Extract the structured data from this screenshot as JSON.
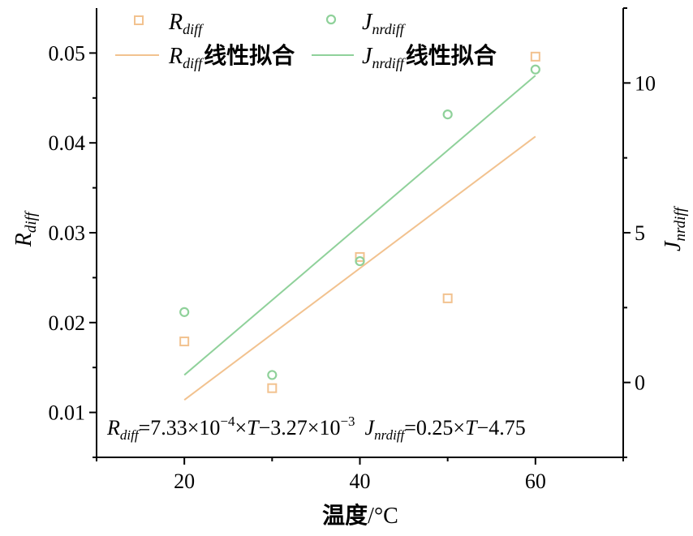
{
  "chart_data": {
    "type": "scatter",
    "title": "",
    "x": [
      20,
      30,
      40,
      50,
      60
    ],
    "xlabel_cn": "温度",
    "xlabel_unit": "/°C",
    "xlim": [
      10,
      70
    ],
    "x_ticks": [
      "20",
      "40",
      "60"
    ],
    "ylabel_left": {
      "main": "R",
      "sub": "diff"
    },
    "ylim_left": [
      0.005,
      0.055
    ],
    "y_ticks_left": [
      "0.01",
      "0.02",
      "0.03",
      "0.04",
      "0.05"
    ],
    "ylabel_right": {
      "main": "J",
      "sub": "nrdiff"
    },
    "ylim_right": [
      -2.5,
      12.5
    ],
    "y_ticks_right": [
      "0",
      "5",
      "10"
    ],
    "series": [
      {
        "key": "rdiff",
        "axis": "left",
        "marker": "square",
        "color": "#f2c28f",
        "values": [
          0.0179,
          0.0127,
          0.0273,
          0.0227,
          0.0496
        ],
        "fit": {
          "slope": 0.000733,
          "intercept": -0.00327
        }
      },
      {
        "key": "jnrdiff",
        "axis": "right",
        "marker": "circle",
        "color": "#8fd19a",
        "values": [
          2.35,
          0.25,
          4.05,
          8.95,
          10.45
        ],
        "fit": {
          "slope": 0.25,
          "intercept": -4.75
        }
      }
    ],
    "legend": {
      "position": "top",
      "fit_suffix": "线性拟合",
      "r_main": "R",
      "r_sub": "diff",
      "j_main": "J",
      "j_sub": "nrdiff"
    },
    "annotation": {
      "r_eq_main": "R",
      "r_eq_sub": "diff",
      "r_eq_a": "=7.33×10",
      "r_eq_exp": "−4",
      "r_eq_b": "×",
      "r_eq_t": "T",
      "r_eq_c": "−3.27×10",
      "r_eq_exp2": "−3",
      "j_eq_main": "J",
      "j_eq_sub": "nrdiff",
      "j_eq_a": "=0.25×",
      "j_eq_t": "T",
      "j_eq_b": "−4.75"
    }
  }
}
